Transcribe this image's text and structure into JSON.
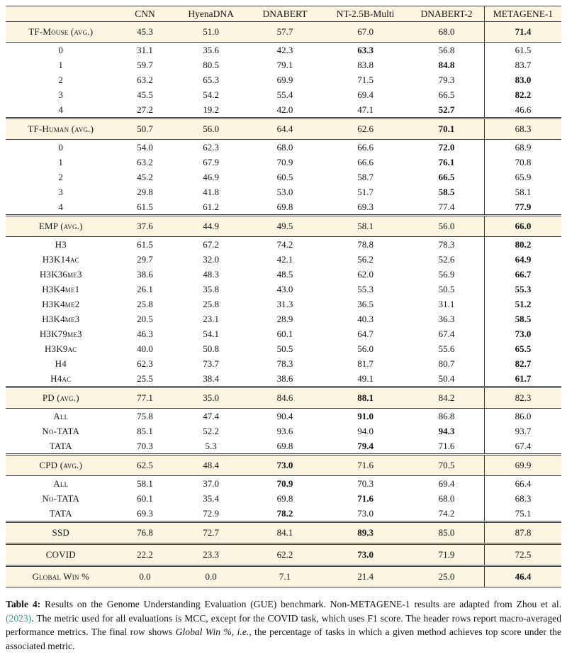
{
  "table": {
    "columns": [
      "CNN",
      "HyenaDNA",
      "DNABERT",
      "NT-2.5B-Multi",
      "DNABERT-2",
      "METAGENE-1"
    ],
    "sections": [
      {
        "header": {
          "label": "TF-Mouse (avg.)",
          "values": [
            "45.3",
            "51.0",
            "57.7",
            "67.0",
            "68.0",
            "71.4"
          ],
          "bold": 5
        },
        "rows": [
          {
            "label": "0",
            "values": [
              "31.1",
              "35.6",
              "42.3",
              "63.3",
              "56.8",
              "61.5"
            ],
            "bold": 3
          },
          {
            "label": "1",
            "values": [
              "59.7",
              "80.5",
              "79.1",
              "83.8",
              "84.8",
              "83.7"
            ],
            "bold": 4
          },
          {
            "label": "2",
            "values": [
              "63.2",
              "65.3",
              "69.9",
              "71.5",
              "79.3",
              "83.0"
            ],
            "bold": 5
          },
          {
            "label": "3",
            "values": [
              "45.5",
              "54.2",
              "55.4",
              "69.4",
              "66.5",
              "82.2"
            ],
            "bold": 5
          },
          {
            "label": "4",
            "values": [
              "27.2",
              "19.2",
              "42.0",
              "47.1",
              "52.7",
              "46.6"
            ],
            "bold": 4
          }
        ]
      },
      {
        "header": {
          "label": "TF-Human (avg.)",
          "values": [
            "50.7",
            "56.0",
            "64.4",
            "62.6",
            "70.1",
            "68.3"
          ],
          "bold": 4
        },
        "rows": [
          {
            "label": "0",
            "values": [
              "54.0",
              "62.3",
              "68.0",
              "66.6",
              "72.0",
              "68.9"
            ],
            "bold": 4
          },
          {
            "label": "1",
            "values": [
              "63.2",
              "67.9",
              "70.9",
              "66.6",
              "76.1",
              "70.8"
            ],
            "bold": 4
          },
          {
            "label": "2",
            "values": [
              "45.2",
              "46.9",
              "60.5",
              "58.7",
              "66.5",
              "65.9"
            ],
            "bold": 4
          },
          {
            "label": "3",
            "values": [
              "29.8",
              "41.8",
              "53.0",
              "51.7",
              "58.5",
              "58.1"
            ],
            "bold": 4
          },
          {
            "label": "4",
            "values": [
              "61.5",
              "61.2",
              "69.8",
              "69.3",
              "77.4",
              "77.9"
            ],
            "bold": 5
          }
        ]
      },
      {
        "header": {
          "label": "EMP (avg.)",
          "values": [
            "37.6",
            "44.9",
            "49.5",
            "58.1",
            "56.0",
            "66.0"
          ],
          "bold": 5
        },
        "rows": [
          {
            "label": "H3",
            "values": [
              "61.5",
              "67.2",
              "74.2",
              "78.8",
              "78.3",
              "80.2"
            ],
            "bold": 5
          },
          {
            "label": "H3K14ac",
            "values": [
              "29.7",
              "32.0",
              "42.1",
              "56.2",
              "52.6",
              "64.9"
            ],
            "bold": 5
          },
          {
            "label": "H3K36me3",
            "values": [
              "38.6",
              "48.3",
              "48.5",
              "62.0",
              "56.9",
              "66.7"
            ],
            "bold": 5
          },
          {
            "label": "H3K4me1",
            "values": [
              "26.1",
              "35.8",
              "43.0",
              "55.3",
              "50.5",
              "55.3"
            ],
            "bold": 5
          },
          {
            "label": "H3K4me2",
            "values": [
              "25.8",
              "25.8",
              "31.3",
              "36.5",
              "31.1",
              "51.2"
            ],
            "bold": 5
          },
          {
            "label": "H3K4me3",
            "values": [
              "20.5",
              "23.1",
              "28.9",
              "40.3",
              "36.3",
              "58.5"
            ],
            "bold": 5
          },
          {
            "label": "H3K79me3",
            "values": [
              "46.3",
              "54.1",
              "60.1",
              "64.7",
              "67.4",
              "73.0"
            ],
            "bold": 5
          },
          {
            "label": "H3K9ac",
            "values": [
              "40.0",
              "50.8",
              "50.5",
              "56.0",
              "55.6",
              "65.5"
            ],
            "bold": 5
          },
          {
            "label": "H4",
            "values": [
              "62.3",
              "73.7",
              "78.3",
              "81.7",
              "80.7",
              "82.7"
            ],
            "bold": 5
          },
          {
            "label": "H4ac",
            "values": [
              "25.5",
              "38.4",
              "38.6",
              "49.1",
              "50.4",
              "61.7"
            ],
            "bold": 5
          }
        ]
      },
      {
        "header": {
          "label": "PD (avg.)",
          "values": [
            "77.1",
            "35.0",
            "84.6",
            "88.1",
            "84.2",
            "82.3"
          ],
          "bold": 3
        },
        "rows": [
          {
            "label": "All",
            "values": [
              "75.8",
              "47.4",
              "90.4",
              "91.0",
              "86.8",
              "86.0"
            ],
            "bold": 3
          },
          {
            "label": "No-TATA",
            "values": [
              "85.1",
              "52.2",
              "93.6",
              "94.0",
              "94.3",
              "93.7"
            ],
            "bold": 4
          },
          {
            "label": "TATA",
            "values": [
              "70.3",
              "5.3",
              "69.8",
              "79.4",
              "71.6",
              "67.4"
            ],
            "bold": 3
          }
        ]
      },
      {
        "header": {
          "label": "CPD (avg.)",
          "values": [
            "62.5",
            "48.4",
            "73.0",
            "71.6",
            "70.5",
            "69.9"
          ],
          "bold": 2
        },
        "rows": [
          {
            "label": "All",
            "values": [
              "58.1",
              "37.0",
              "70.9",
              "70.3",
              "69.4",
              "66.4"
            ],
            "bold": 2
          },
          {
            "label": "No-TATA",
            "values": [
              "60.1",
              "35.4",
              "69.8",
              "71.6",
              "68.0",
              "68.3"
            ],
            "bold": 3
          },
          {
            "label": "TATA",
            "values": [
              "69.3",
              "72.9",
              "78.2",
              "73.0",
              "74.2",
              "75.1"
            ],
            "bold": 2
          }
        ]
      },
      {
        "header": {
          "label": "SSD",
          "values": [
            "76.8",
            "72.7",
            "84.1",
            "89.3",
            "85.0",
            "87.8"
          ],
          "bold": 3
        },
        "rows": []
      },
      {
        "header": {
          "label": "COVID",
          "values": [
            "22.2",
            "23.3",
            "62.2",
            "73.0",
            "71.9",
            "72.5"
          ],
          "bold": 3
        },
        "rows": []
      },
      {
        "header": {
          "label": "Global Win %",
          "values": [
            "0.0",
            "0.0",
            "7.1",
            "21.4",
            "25.0",
            "46.4"
          ],
          "bold": 5
        },
        "rows": []
      }
    ]
  },
  "caption": {
    "segments": [
      {
        "text": "Table 4:",
        "style": "bold"
      },
      {
        "text": " Results on the Genome Understanding Evaluation (GUE) benchmark. Non-METAGENE-1 results are adapted from Zhou et al. ",
        "style": "normal"
      },
      {
        "text": "(2023)",
        "style": "cite"
      },
      {
        "text": ". The metric used for all evaluations is MCC, except for the COVID task, which uses F1 score. The header rows report macro-averaged performance metrics. The final row shows ",
        "style": "normal"
      },
      {
        "text": "Global Win %",
        "style": "italic"
      },
      {
        "text": ", ",
        "style": "normal"
      },
      {
        "text": "i.e.",
        "style": "italic"
      },
      {
        "text": ", the percentage of tasks in which a given method achieves top score under the associated metric.",
        "style": "normal"
      }
    ]
  },
  "colors": {
    "section_background": "#fbf5e2",
    "border": "#3a3a3a",
    "citation": "#2a9d8f"
  }
}
